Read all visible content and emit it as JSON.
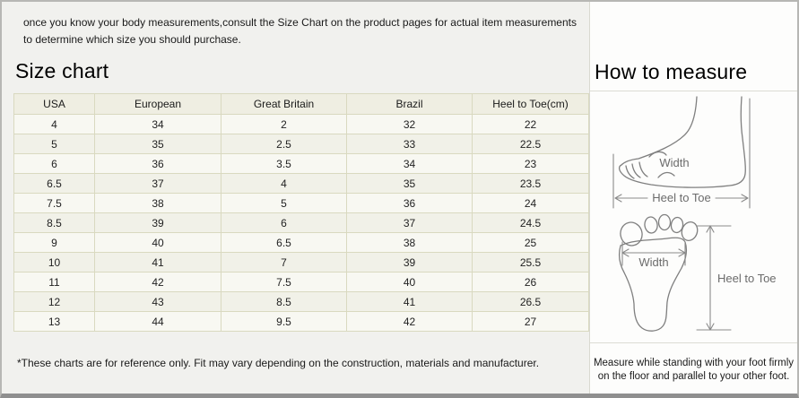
{
  "intro": "once you know your body measurements,consult the Size Chart on the product pages for actual item measurements to determine which size you should purchase.",
  "left": {
    "heading": "Size chart",
    "table": {
      "headers": [
        "USA",
        "European",
        "Great Britain",
        "Brazil",
        "Heel to Toe(cm)"
      ],
      "rows": [
        [
          "4",
          "34",
          "2",
          "32",
          "22"
        ],
        [
          "5",
          "35",
          "2.5",
          "33",
          "22.5"
        ],
        [
          "6",
          "36",
          "3.5",
          "34",
          "23"
        ],
        [
          "6.5",
          "37",
          "4",
          "35",
          "23.5"
        ],
        [
          "7.5",
          "38",
          "5",
          "36",
          "24"
        ],
        [
          "8.5",
          "39",
          "6",
          "37",
          "24.5"
        ],
        [
          "9",
          "40",
          "6.5",
          "38",
          "25"
        ],
        [
          "10",
          "41",
          "7",
          "39",
          "25.5"
        ],
        [
          "11",
          "42",
          "7.5",
          "40",
          "26"
        ],
        [
          "12",
          "43",
          "8.5",
          "41",
          "26.5"
        ],
        [
          "13",
          "44",
          "9.5",
          "42",
          "27"
        ]
      ]
    },
    "footnote": "*These charts are for reference only. Fit may vary depending on the construction, materials and manufacturer."
  },
  "right": {
    "heading": "How to measure",
    "side_view": {
      "width_label": "Width",
      "length_label": "Heel to Toe"
    },
    "bottom_view": {
      "width_label": "Width",
      "length_label": "Heel to Toe"
    },
    "note": "Measure while standing with your foot firmly on the floor and parallel to your other foot."
  },
  "colors": {
    "panel_left_bg": "#f1f1ee",
    "panel_right_bg": "#fdfdfc",
    "table_header_bg": "#efeee2",
    "table_row_bg": "#f8f8f2",
    "table_border": "#d9d9c0",
    "outer_border": "#8f8f8f",
    "diagram_stroke": "#7f7f7f"
  }
}
